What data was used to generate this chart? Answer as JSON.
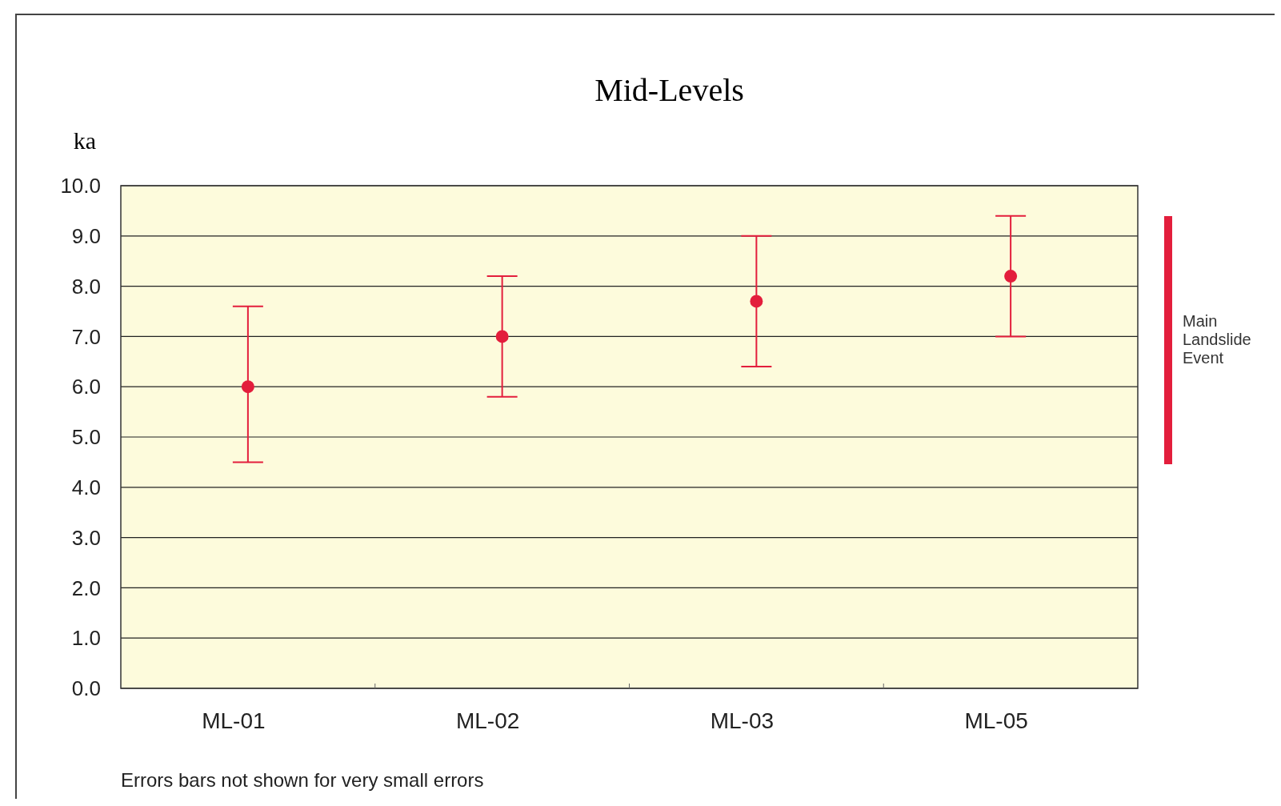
{
  "chart_data": {
    "type": "scatter",
    "title": "Mid-Levels",
    "ylabel": "ka",
    "categories": [
      "ML-01",
      "ML-02",
      "ML-03",
      "ML-05"
    ],
    "series": [
      {
        "color": "#e31e3c",
        "values": [
          6.0,
          7.0,
          7.7,
          8.2
        ],
        "errors": [
          [
            4.5,
            7.6
          ],
          [
            5.8,
            8.2
          ],
          [
            6.4,
            9.0
          ],
          [
            7.0,
            9.4
          ]
        ]
      }
    ],
    "ylim": [
      0,
      10
    ],
    "yticks": [
      {
        "value": 0,
        "label": "0.0"
      },
      {
        "value": 1,
        "label": "1.0"
      },
      {
        "value": 2,
        "label": "2.0"
      },
      {
        "value": 3,
        "label": "3.0"
      },
      {
        "value": 4,
        "label": "4.0"
      },
      {
        "value": 5,
        "label": "5.0"
      },
      {
        "value": 6,
        "label": "6.0"
      },
      {
        "value": 7,
        "label": "7.0"
      },
      {
        "value": 8,
        "label": "8.0"
      },
      {
        "value": 9,
        "label": "9.0"
      },
      {
        "value": 10,
        "label": "10.0"
      }
    ],
    "grid": "y",
    "marker": "circle",
    "annotations": [
      "Errors bars not shown for very small errors",
      "Main Landslide Event"
    ]
  }
}
